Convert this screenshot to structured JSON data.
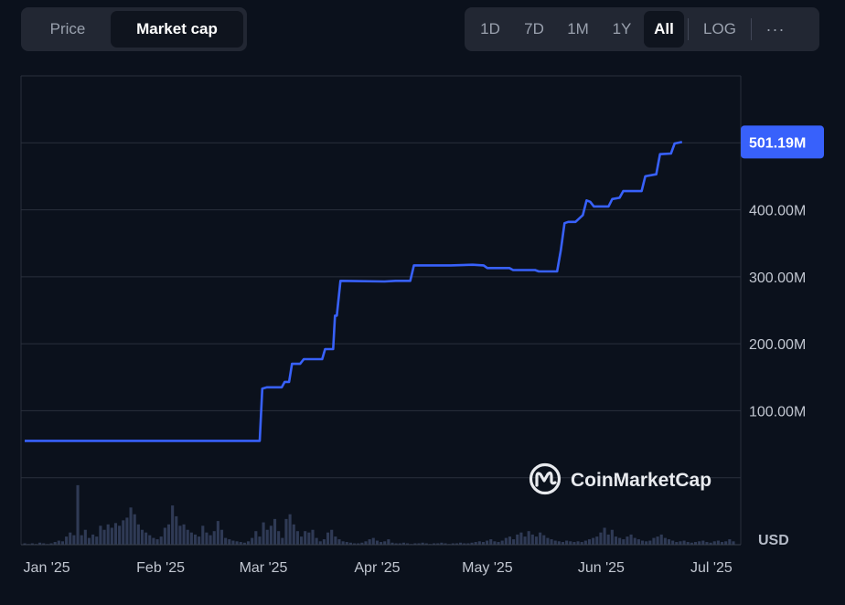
{
  "metric_toggle": {
    "price_label": "Price",
    "market_cap_label": "Market cap",
    "selected": "Market cap"
  },
  "range_toggle": {
    "ranges": [
      "1D",
      "7D",
      "1M",
      "1Y",
      "All"
    ],
    "selected": "All",
    "log_label": "LOG",
    "more_label": "···"
  },
  "colors": {
    "background": "#0b111c",
    "line": "#3861fb",
    "grid": "#2a303c",
    "volume": "#2f3a55",
    "badge": "#3861fb"
  },
  "watermark": {
    "text": "CoinMarketCap"
  },
  "chart_data": {
    "type": "line",
    "title": "",
    "xlabel": "",
    "ylabel": "",
    "currency_label": "USD",
    "ylim": [
      -100000000,
      600000000
    ],
    "y_ticks": [
      {
        "value": 100000000,
        "label": "100.00M"
      },
      {
        "value": 200000000,
        "label": "200.00M"
      },
      {
        "value": 300000000,
        "label": "300.00M"
      },
      {
        "value": 400000000,
        "label": "400.00M"
      }
    ],
    "grid_values": [
      0,
      100000000,
      200000000,
      300000000,
      400000000,
      500000000
    ],
    "x_ticks": [
      {
        "day": 0,
        "label": "Jan '25"
      },
      {
        "day": 31,
        "label": "Feb '25"
      },
      {
        "day": 59,
        "label": "Mar '25"
      },
      {
        "day": 90,
        "label": "Apr '25"
      },
      {
        "day": 120,
        "label": "May '25"
      },
      {
        "day": 151,
        "label": "Jun '25"
      },
      {
        "day": 181,
        "label": "Jul '25"
      }
    ],
    "xlim": [
      -7,
      189
    ],
    "current_value_label": "501.19M",
    "current_value": 501190000,
    "series": [
      {
        "name": "Market cap",
        "points": [
          [
            -6,
            55000000
          ],
          [
            58,
            55000000
          ],
          [
            58.7,
            133000000
          ],
          [
            60,
            135000000
          ],
          [
            64,
            135000000
          ],
          [
            64.8,
            143000000
          ],
          [
            66,
            143000000
          ],
          [
            66.8,
            170000000
          ],
          [
            69,
            170000000
          ],
          [
            70,
            177000000
          ],
          [
            75,
            177000000
          ],
          [
            75.8,
            192000000
          ],
          [
            78,
            192000000
          ],
          [
            78.5,
            242000000
          ],
          [
            79,
            242000000
          ],
          [
            80,
            294000000
          ],
          [
            92,
            293000000
          ],
          [
            95,
            294000000
          ],
          [
            99,
            294000000
          ],
          [
            100,
            317000000
          ],
          [
            105,
            317000000
          ],
          [
            110,
            317000000
          ],
          [
            116,
            318000000
          ],
          [
            119,
            317000000
          ],
          [
            120,
            313000000
          ],
          [
            126,
            313000000
          ],
          [
            127,
            310000000
          ],
          [
            133,
            310000000
          ],
          [
            134,
            308000000
          ],
          [
            139,
            308000000
          ],
          [
            140,
            340000000
          ],
          [
            141,
            380000000
          ],
          [
            142,
            382000000
          ],
          [
            144,
            382000000
          ],
          [
            146,
            392000000
          ],
          [
            147,
            414000000
          ],
          [
            148,
            412000000
          ],
          [
            149,
            405000000
          ],
          [
            153,
            405000000
          ],
          [
            154,
            416000000
          ],
          [
            156,
            418000000
          ],
          [
            157,
            428000000
          ],
          [
            162,
            428000000
          ],
          [
            163,
            450000000
          ],
          [
            166,
            453000000
          ],
          [
            167,
            483000000
          ],
          [
            170,
            484000000
          ],
          [
            171,
            499000000
          ],
          [
            173,
            501190000
          ]
        ]
      }
    ],
    "volume": [
      0.02,
      0.01,
      0.02,
      0.01,
      0.03,
      0.02,
      0.01,
      0.02,
      0.04,
      0.06,
      0.05,
      0.12,
      0.18,
      0.14,
      0.88,
      0.14,
      0.22,
      0.1,
      0.15,
      0.12,
      0.28,
      0.22,
      0.3,
      0.25,
      0.32,
      0.28,
      0.36,
      0.4,
      0.55,
      0.45,
      0.3,
      0.22,
      0.18,
      0.14,
      0.1,
      0.08,
      0.12,
      0.25,
      0.3,
      0.58,
      0.42,
      0.28,
      0.3,
      0.22,
      0.18,
      0.15,
      0.12,
      0.28,
      0.18,
      0.14,
      0.2,
      0.35,
      0.22,
      0.1,
      0.08,
      0.06,
      0.05,
      0.04,
      0.03,
      0.05,
      0.1,
      0.2,
      0.12,
      0.33,
      0.22,
      0.28,
      0.38,
      0.2,
      0.1,
      0.38,
      0.45,
      0.3,
      0.2,
      0.12,
      0.2,
      0.18,
      0.22,
      0.1,
      0.05,
      0.08,
      0.18,
      0.22,
      0.12,
      0.08,
      0.05,
      0.04,
      0.03,
      0.02,
      0.02,
      0.03,
      0.05,
      0.08,
      0.1,
      0.06,
      0.04,
      0.05,
      0.08,
      0.03,
      0.02,
      0.02,
      0.03,
      0.02,
      0.01,
      0.02,
      0.02,
      0.03,
      0.02,
      0.01,
      0.02,
      0.02,
      0.03,
      0.02,
      0.01,
      0.02,
      0.02,
      0.03,
      0.02,
      0.02,
      0.03,
      0.04,
      0.05,
      0.04,
      0.06,
      0.08,
      0.05,
      0.04,
      0.06,
      0.1,
      0.12,
      0.08,
      0.15,
      0.18,
      0.12,
      0.2,
      0.15,
      0.12,
      0.18,
      0.14,
      0.1,
      0.08,
      0.06,
      0.05,
      0.04,
      0.06,
      0.05,
      0.04,
      0.05,
      0.04,
      0.06,
      0.08,
      0.1,
      0.12,
      0.18,
      0.25,
      0.15,
      0.22,
      0.12,
      0.1,
      0.08,
      0.12,
      0.15,
      0.1,
      0.08,
      0.06,
      0.05,
      0.06,
      0.1,
      0.12,
      0.15,
      0.1,
      0.08,
      0.06,
      0.04,
      0.05,
      0.06,
      0.04,
      0.03,
      0.04,
      0.05,
      0.06,
      0.04,
      0.03,
      0.05,
      0.06,
      0.04,
      0.05,
      0.08,
      0.05
    ]
  }
}
